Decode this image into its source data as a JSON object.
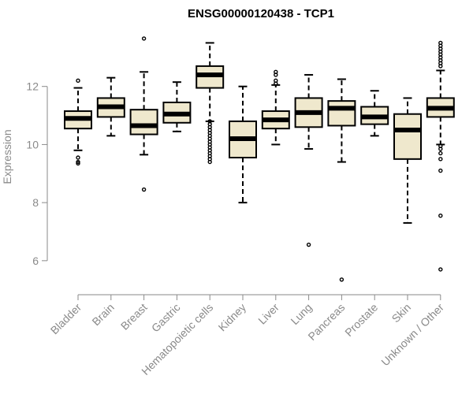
{
  "chart_data": {
    "type": "boxplot",
    "title": "ENSG00000120438 - TCP1",
    "xlabel": "",
    "ylabel": "Expression",
    "ylim": [
      5.1,
      14.0
    ],
    "yticks": [
      6,
      8,
      10,
      12
    ],
    "colors": {
      "box_fill": "#efe8cd",
      "stroke": "#000000",
      "axis": "#8a8a8a"
    },
    "categories": [
      "Bladder",
      "Brain",
      "Breast",
      "Gastric",
      "Hematopoietic cells",
      "Kidney",
      "Liver",
      "Lung",
      "Pancreas",
      "Prostate",
      "Skin",
      "Unknown / Other"
    ],
    "boxes": [
      {
        "category": "Bladder",
        "min": 9.8,
        "q1": 10.55,
        "median": 10.9,
        "q3": 11.15,
        "max": 11.95,
        "outliers": [
          12.2,
          9.55,
          9.4,
          9.35
        ]
      },
      {
        "category": "Brain",
        "min": 10.3,
        "q1": 10.95,
        "median": 11.3,
        "q3": 11.6,
        "max": 12.3,
        "outliers": []
      },
      {
        "category": "Breast",
        "min": 9.65,
        "q1": 10.35,
        "median": 10.65,
        "q3": 11.2,
        "max": 12.5,
        "outliers": [
          13.65,
          8.45
        ]
      },
      {
        "category": "Gastric",
        "min": 10.45,
        "q1": 10.75,
        "median": 11.05,
        "q3": 11.45,
        "max": 12.15,
        "outliers": []
      },
      {
        "category": "Hematopoietic cells",
        "min": 10.8,
        "q1": 11.95,
        "median": 12.4,
        "q3": 12.7,
        "max": 13.5,
        "outliers": [
          10.8,
          10.7,
          10.6,
          10.5,
          10.4,
          10.3,
          10.2,
          10.1,
          10.0,
          9.9,
          9.8,
          9.7,
          9.6,
          9.5,
          9.4
        ]
      },
      {
        "category": "Kidney",
        "min": 8.0,
        "q1": 9.55,
        "median": 10.2,
        "q3": 10.8,
        "max": 12.0,
        "outliers": []
      },
      {
        "category": "Liver",
        "min": 10.0,
        "q1": 10.55,
        "median": 10.85,
        "q3": 11.15,
        "max": 12.05,
        "outliers": [
          12.5,
          12.4,
          12.2,
          12.1
        ]
      },
      {
        "category": "Lung",
        "min": 9.85,
        "q1": 10.6,
        "median": 11.1,
        "q3": 11.6,
        "max": 12.4,
        "outliers": [
          6.55
        ]
      },
      {
        "category": "Pancreas",
        "min": 9.4,
        "q1": 10.65,
        "median": 11.25,
        "q3": 11.5,
        "max": 12.25,
        "outliers": [
          5.35
        ]
      },
      {
        "category": "Prostate",
        "min": 10.3,
        "q1": 10.7,
        "median": 10.95,
        "q3": 11.3,
        "max": 11.85,
        "outliers": []
      },
      {
        "category": "Skin",
        "min": 7.3,
        "q1": 9.5,
        "median": 10.5,
        "q3": 11.05,
        "max": 11.6,
        "outliers": []
      },
      {
        "category": "Unknown / Other",
        "min": 10.0,
        "q1": 10.95,
        "median": 11.25,
        "q3": 11.6,
        "max": 12.55,
        "outliers": [
          13.5,
          13.4,
          13.3,
          13.2,
          13.1,
          13.0,
          12.9,
          12.8,
          12.7,
          9.95,
          9.85,
          9.7,
          9.5,
          9.1,
          7.55,
          5.7
        ]
      }
    ]
  }
}
